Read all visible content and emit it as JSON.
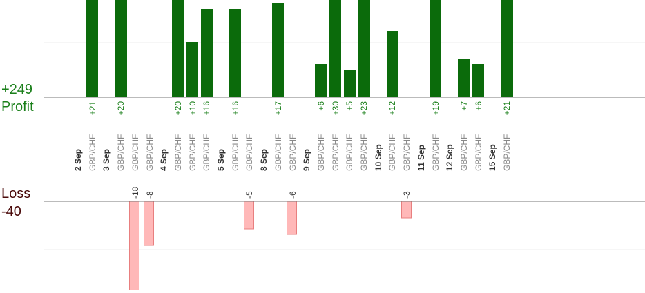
{
  "summary": {
    "profit_total": "+249",
    "profit_label": "Profit",
    "loss_label": "Loss",
    "loss_total": "-40"
  },
  "colors": {
    "profit_bar": "#0b6b0b",
    "profit_text": "#1a7f1a",
    "loss_bar_fill": "#ffb8b8",
    "loss_bar_stroke": "#e87f7f",
    "loss_text": "#4a0a0a",
    "axis": "#777777",
    "grid": "#eeeeee",
    "pair_text": "#888888",
    "date_text": "#333333"
  },
  "chart_data": {
    "type": "bar",
    "title": "",
    "grid": true,
    "columns": [
      {
        "label": "2 Sep",
        "kind": "date"
      },
      {
        "label": "GBP/CHF",
        "kind": "pair",
        "value": 21
      },
      {
        "label": "3 Sep",
        "kind": "date"
      },
      {
        "label": "GBP/CHF",
        "kind": "pair",
        "value": 20
      },
      {
        "label": "GBP/CHF",
        "kind": "pair",
        "value": -18
      },
      {
        "label": "GBP/CHF",
        "kind": "pair",
        "value": -8
      },
      {
        "label": "4 Sep",
        "kind": "date"
      },
      {
        "label": "GBP/CHF",
        "kind": "pair",
        "value": 20
      },
      {
        "label": "GBP/CHF",
        "kind": "pair",
        "value": 10
      },
      {
        "label": "GBP/CHF",
        "kind": "pair",
        "value": 16
      },
      {
        "label": "5 Sep",
        "kind": "date"
      },
      {
        "label": "GBP/CHF",
        "kind": "pair",
        "value": 16
      },
      {
        "label": "GBP/CHF",
        "kind": "pair",
        "value": -5
      },
      {
        "label": "8 Sep",
        "kind": "date"
      },
      {
        "label": "GBP/CHF",
        "kind": "pair",
        "value": 17
      },
      {
        "label": "GBP/CHF",
        "kind": "pair",
        "value": -6
      },
      {
        "label": "9 Sep",
        "kind": "date"
      },
      {
        "label": "GBP/CHF",
        "kind": "pair",
        "value": 6
      },
      {
        "label": "GBP/CHF",
        "kind": "pair",
        "value": 30
      },
      {
        "label": "GBP/CHF",
        "kind": "pair",
        "value": 5
      },
      {
        "label": "GBP/CHF",
        "kind": "pair",
        "value": 23
      },
      {
        "label": "10 Sep",
        "kind": "date"
      },
      {
        "label": "GBP/CHF",
        "kind": "pair",
        "value": 12
      },
      {
        "label": "GBP/CHF",
        "kind": "pair",
        "value": -3
      },
      {
        "label": "11 Sep",
        "kind": "date"
      },
      {
        "label": "GBP/CHF",
        "kind": "pair",
        "value": 19
      },
      {
        "label": "12 Sep",
        "kind": "date"
      },
      {
        "label": "GBP/CHF",
        "kind": "pair",
        "value": 7
      },
      {
        "label": "GBP/CHF",
        "kind": "pair",
        "value": 6
      },
      {
        "label": "15 Sep",
        "kind": "date"
      },
      {
        "label": "GBP/CHF",
        "kind": "pair",
        "value": 21
      }
    ]
  }
}
